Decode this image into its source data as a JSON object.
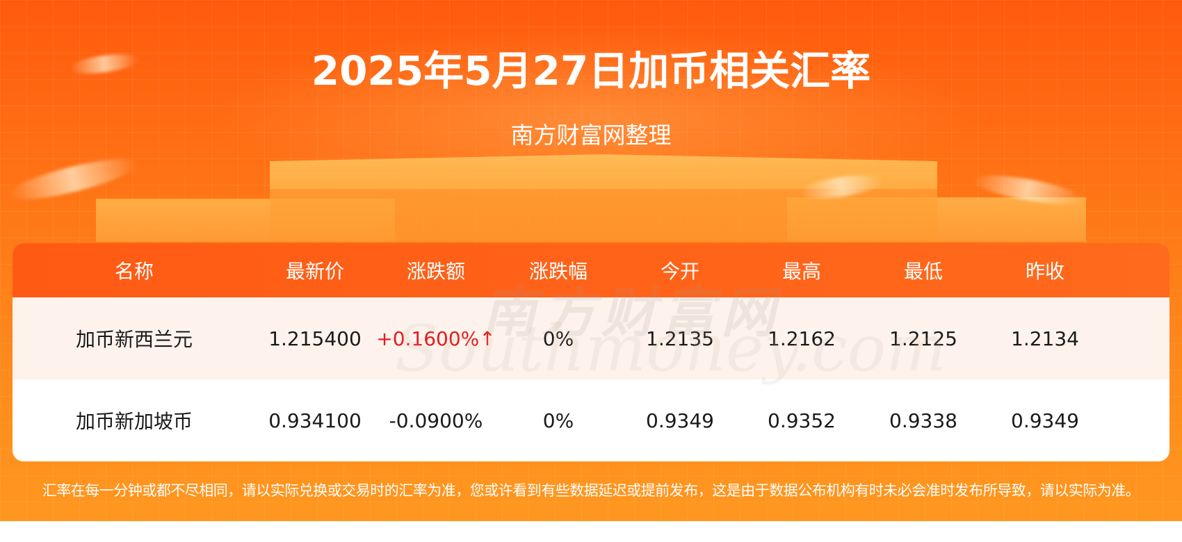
{
  "header": {
    "title": "2025年5月27日加币相关汇率",
    "subtitle": "南方财富网整理"
  },
  "table": {
    "columns": [
      "名称",
      "最新价",
      "涨跌额",
      "涨跌幅",
      "今开",
      "最高",
      "最低",
      "昨收"
    ],
    "rows": [
      {
        "name": "加币新西兰元",
        "latest": "1.215400",
        "change": "+0.1600%↑",
        "change_pct": "0%",
        "open": "1.2135",
        "high": "1.2162",
        "low": "1.2125",
        "prev_close": "1.2134"
      },
      {
        "name": "加币新加坡币",
        "latest": "0.934100",
        "change": "-0.0900%",
        "change_pct": "0%",
        "open": "0.9349",
        "high": "0.9352",
        "low": "0.9338",
        "prev_close": "0.9349"
      }
    ]
  },
  "watermark": {
    "cn": "南方财富网",
    "en": "Southmoney.com"
  },
  "disclaimer": "汇率在每一分钟或都不尽相同，请以实际兑换或交易时的汇率为准，您或许看到有些数据延迟或提前发布，这是由于数据公布机构有时未必会准时发布所导致，请以实际为准。",
  "colors": {
    "accent": "#ff6a12",
    "header_row": "#ff5a14",
    "rise": "#e8191c",
    "row_alt": "#fdf3ec"
  }
}
